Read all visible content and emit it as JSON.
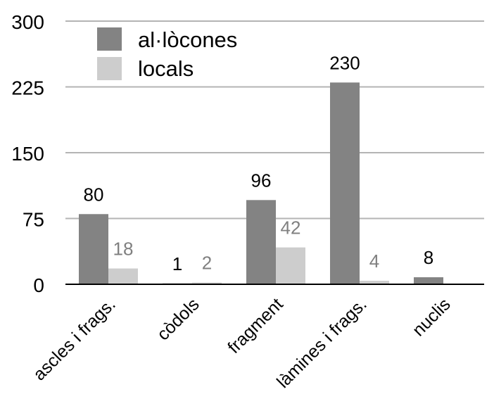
{
  "chart_data": {
    "type": "bar",
    "categories": [
      "ascles i frags.",
      "còdols",
      "fragment",
      "làmines i frags.",
      "nuclis"
    ],
    "series": [
      {
        "name": "al·lòcones",
        "values": [
          80,
          1,
          96,
          230,
          8
        ],
        "labels": [
          "80",
          "1",
          "96",
          "230",
          "8"
        ]
      },
      {
        "name": "locals",
        "values": [
          18,
          2,
          42,
          4,
          null
        ],
        "labels": [
          "18",
          "2",
          "42",
          "4",
          ""
        ]
      }
    ],
    "yticks": [
      "0",
      "75",
      "150",
      "225",
      "300"
    ],
    "ylim": [
      0,
      300
    ],
    "grid": true,
    "legend": "top-left",
    "colors": {
      "al·lòcones": "#838383",
      "locals": "#cdcdcd",
      "grid": "#b4b4b4",
      "baseline": "#000000"
    }
  }
}
